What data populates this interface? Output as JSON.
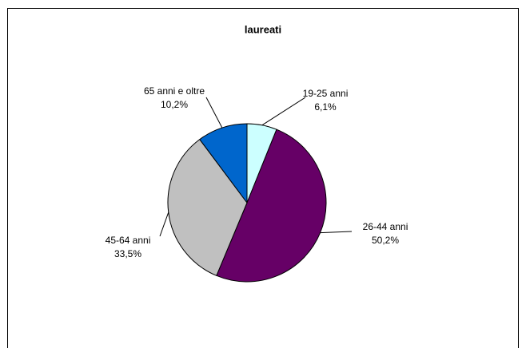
{
  "chart_data": {
    "type": "pie",
    "title": "laureati",
    "categories": [
      "19-25 anni",
      "26-44 anni",
      "45-64 anni",
      "65 anni e oltre"
    ],
    "values": [
      6.1,
      50.2,
      33.5,
      10.2
    ],
    "value_labels": [
      "6,1%",
      "50,2%",
      "33,5%",
      "10,2%"
    ],
    "colors": [
      "#ccffff",
      "#660066",
      "#c0c0c0",
      "#0066cc"
    ]
  }
}
